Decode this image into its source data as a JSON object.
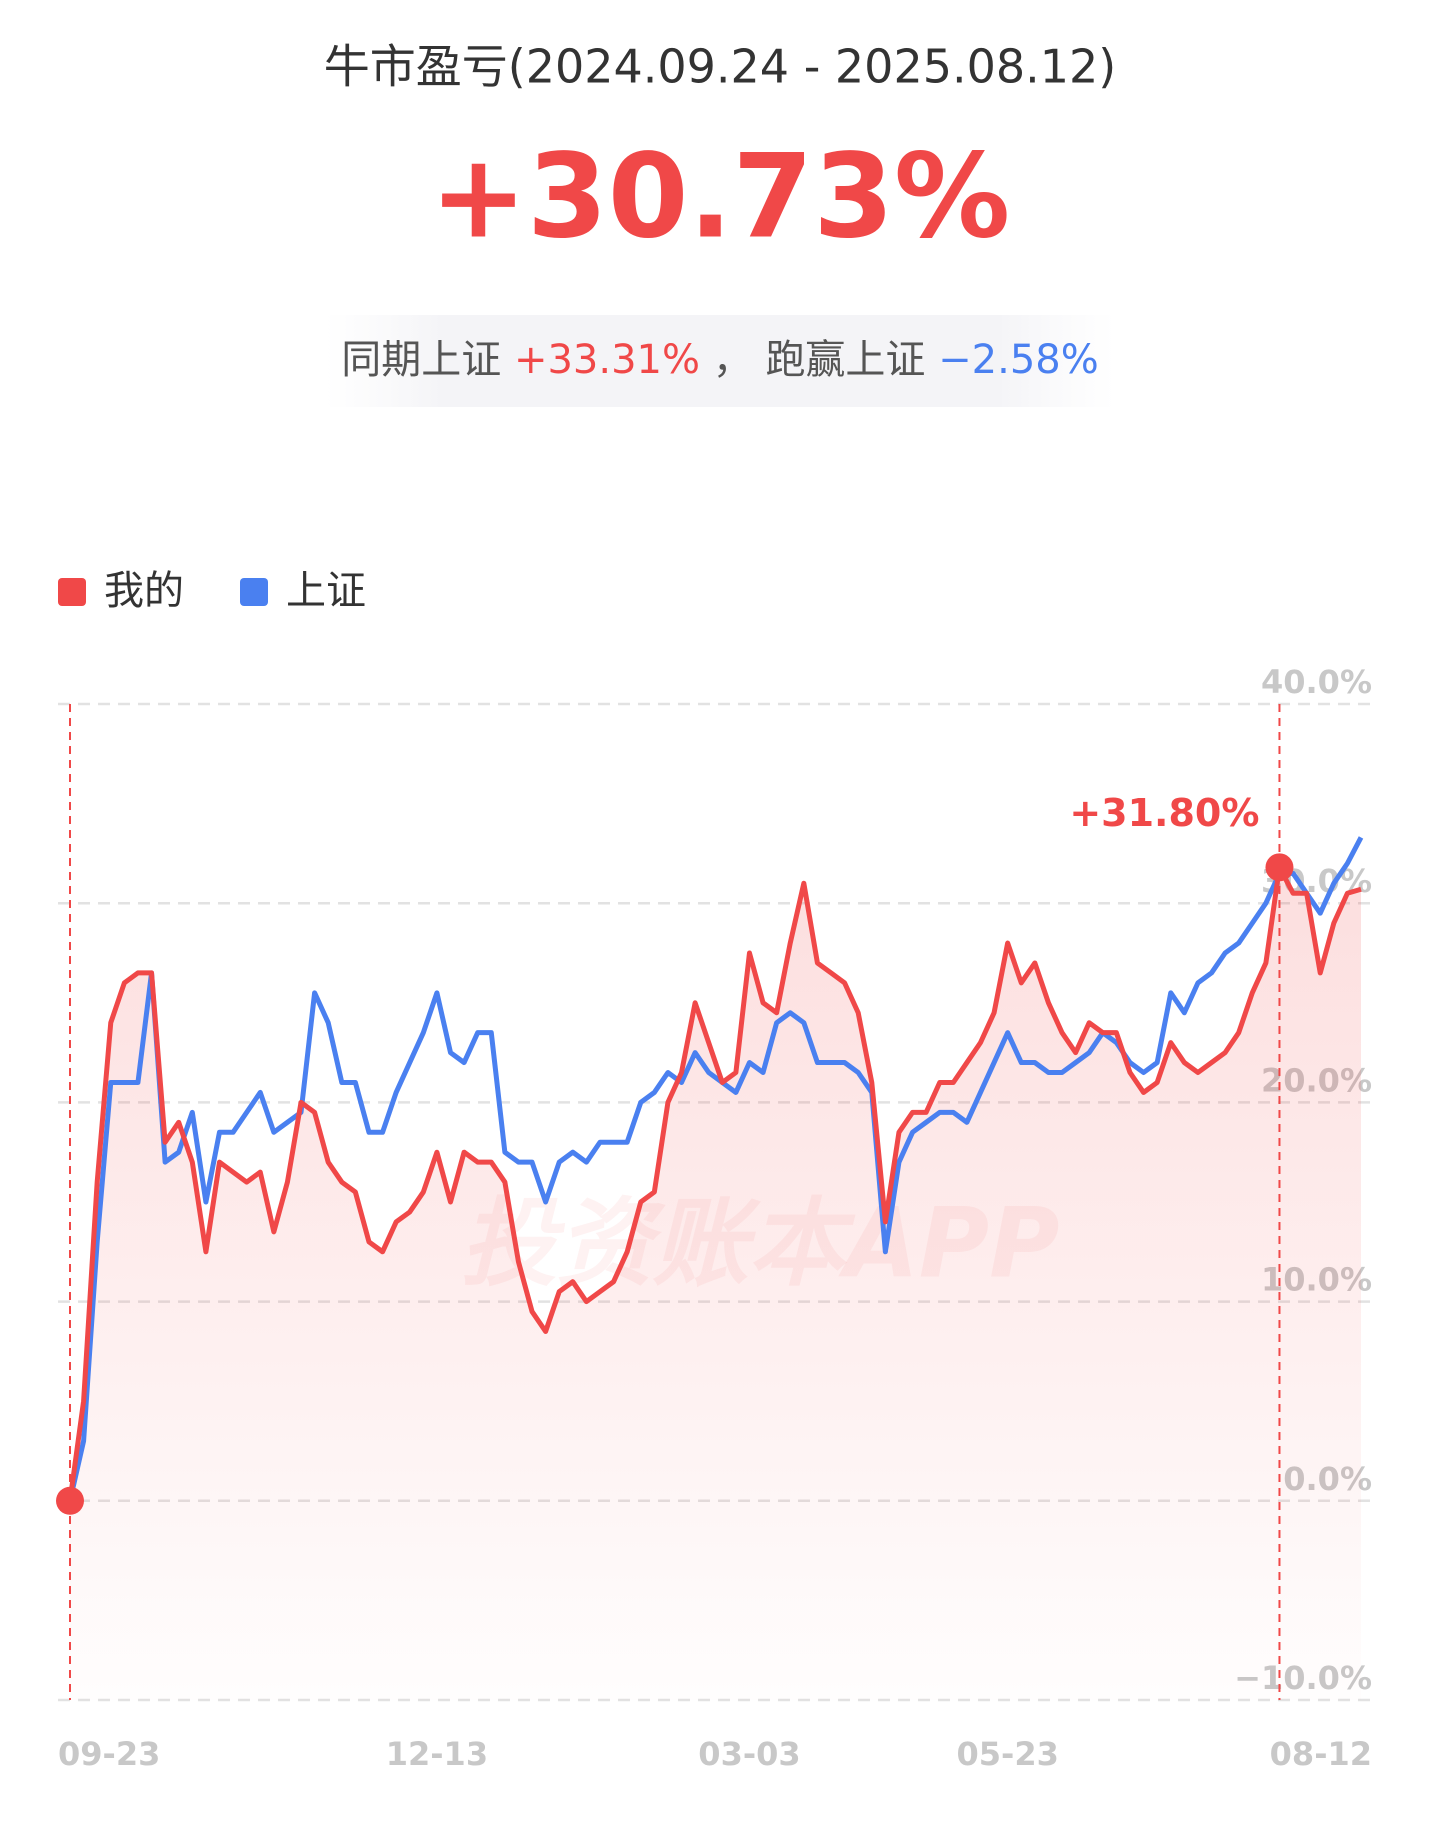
{
  "header": {
    "title": "牛市盈亏(2024.09.24 - 2025.08.12)",
    "total": "+30.73%",
    "summary": {
      "bench_label": "同期上证",
      "bench_value": "+33.31%",
      "sep": "，",
      "beat_label": "跑赢上证",
      "beat_value": "−2.58%"
    }
  },
  "watermark": "投资账本APP",
  "chart_data": {
    "type": "line",
    "categories": [
      "09-23",
      null,
      null,
      null,
      null,
      null,
      null,
      null,
      null,
      null,
      null,
      null,
      null,
      null,
      null,
      null,
      null,
      null,
      null,
      null,
      null,
      null,
      null,
      null,
      null,
      null,
      null,
      "12-13",
      null,
      null,
      null,
      null,
      null,
      null,
      null,
      null,
      null,
      null,
      null,
      null,
      null,
      null,
      null,
      null,
      null,
      null,
      null,
      null,
      null,
      null,
      "03-03",
      null,
      null,
      null,
      null,
      null,
      null,
      null,
      null,
      null,
      null,
      null,
      null,
      null,
      null,
      null,
      null,
      null,
      null,
      "05-23",
      null,
      null,
      null,
      null,
      null,
      null,
      null,
      null,
      null,
      null,
      null,
      null,
      null,
      null,
      null,
      null,
      null,
      null,
      null,
      "08-12",
      null,
      null,
      null,
      null,
      null,
      null
    ],
    "series": [
      {
        "name": "我的",
        "color": "#f04848",
        "values": [
          0,
          5,
          16,
          24,
          26,
          26.5,
          26.5,
          18,
          19,
          17,
          12.5,
          17,
          16.5,
          16,
          16.5,
          13.5,
          16,
          20,
          19.5,
          17,
          16,
          15.5,
          13,
          12.5,
          14,
          14.5,
          15.5,
          17.5,
          15,
          17.5,
          17,
          17,
          16,
          12,
          9.5,
          8.5,
          10.5,
          11,
          10,
          10.5,
          11,
          12.5,
          15,
          15.5,
          20,
          21.5,
          25,
          23,
          21,
          21.5,
          27.5,
          25,
          24.5,
          28,
          31,
          27,
          26.5,
          26,
          24.5,
          21,
          14,
          18.5,
          19.5,
          19.5,
          21,
          21,
          22,
          23,
          24.5,
          28,
          26,
          27,
          25,
          23.5,
          22.5,
          24,
          23.5,
          23.5,
          21.5,
          20.5,
          21,
          23,
          22,
          21.5,
          22,
          22.5,
          23.5,
          25.5,
          27,
          31.8,
          30.5,
          30.5,
          26.5,
          29,
          30.5,
          30.7
        ],
        "value_labels": [
          null,
          null,
          null,
          null,
          null,
          null,
          null,
          null,
          null,
          null,
          null,
          null,
          null,
          null,
          null,
          null,
          null,
          null,
          null,
          null,
          null,
          null,
          null,
          null,
          null,
          null,
          null,
          null,
          null,
          null,
          null,
          null,
          null,
          null,
          null,
          null,
          null,
          null,
          null,
          null,
          null,
          null,
          null,
          null,
          null,
          null,
          null,
          null,
          null,
          null,
          null,
          null,
          null,
          null,
          null,
          null,
          null,
          null,
          null,
          null,
          null,
          null,
          null,
          null,
          null,
          null,
          null,
          null,
          null,
          null,
          null,
          null,
          null,
          null,
          null,
          null,
          null,
          null,
          null,
          null,
          null,
          null,
          null,
          null,
          null,
          null,
          null,
          null,
          null,
          "+31.80%",
          null,
          null,
          null,
          null,
          null,
          null
        ]
      },
      {
        "name": "上证",
        "color": "#4a80f0",
        "values": [
          0,
          3,
          13,
          21,
          21,
          21,
          26.5,
          17,
          17.5,
          19.5,
          15,
          18.5,
          18.5,
          19.5,
          20.5,
          18.5,
          19,
          19.5,
          25.5,
          24,
          21,
          21,
          18.5,
          18.5,
          20.5,
          22,
          23.5,
          25.5,
          22.5,
          22,
          23.5,
          23.5,
          17.5,
          17,
          17,
          15,
          17,
          17.5,
          17,
          18,
          18,
          18,
          20,
          20.5,
          21.5,
          21,
          22.5,
          21.5,
          21,
          20.5,
          22,
          21.5,
          24,
          24.5,
          24,
          22,
          22,
          22,
          21.5,
          20.5,
          12.5,
          17,
          18.5,
          19,
          19.5,
          19.5,
          19,
          20.5,
          22,
          23.5,
          22,
          22,
          21.5,
          21.5,
          22,
          22.5,
          23.5,
          23,
          22,
          21.5,
          22,
          25.5,
          24.5,
          26,
          26.5,
          27.5,
          28,
          29,
          30,
          31.5,
          31.5,
          30.5,
          29.5,
          31,
          32,
          33.3
        ]
      }
    ],
    "ylim": [
      -10,
      40
    ],
    "yticks": [
      {
        "value": -10,
        "label": "−10.0%"
      },
      {
        "value": 0,
        "label": "0.0%"
      },
      {
        "value": 10,
        "label": "10.0%"
      },
      {
        "value": 20,
        "label": "20.0%"
      },
      {
        "value": 30,
        "label": "30.0%"
      },
      {
        "value": 40,
        "label": "40.0%"
      }
    ],
    "grid": true,
    "legend": "top-left"
  }
}
